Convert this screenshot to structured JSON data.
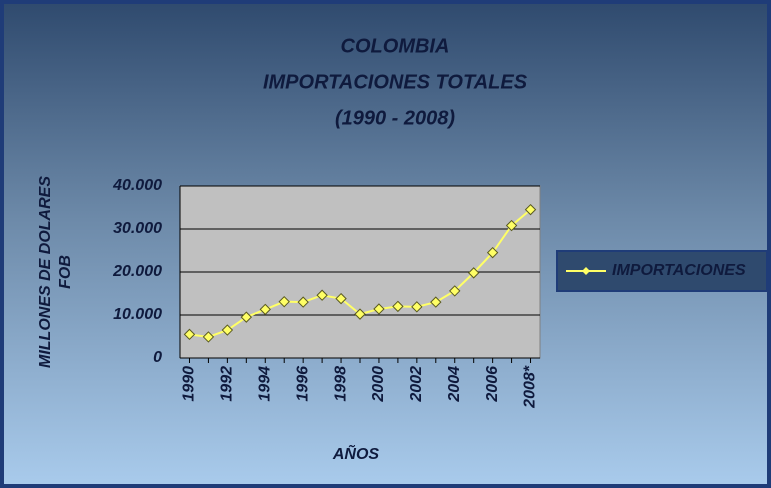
{
  "chart_data": {
    "type": "line",
    "title": [
      "COLOMBIA",
      "IMPORTACIONES TOTALES",
      "(1990 - 2008)"
    ],
    "x_label": "AÑOS",
    "y_label": [
      "MILLONES DE DOLARES",
      "FOB"
    ],
    "categories": [
      "1990",
      null,
      "1992",
      null,
      "1994",
      null,
      "1996",
      null,
      "1998",
      null,
      "2000",
      null,
      "2002",
      null,
      "2004",
      null,
      "2006",
      null,
      "2008*"
    ],
    "series": [
      {
        "name": "IMPORTACIONES",
        "color": "#ffff66",
        "values": [
          5500,
          4900,
          6500,
          9500,
          11300,
          13100,
          13000,
          14600,
          13800,
          10200,
          11400,
          12000,
          11900,
          13000,
          15600,
          19800,
          24500,
          30800,
          34500
        ]
      }
    ],
    "ylim": [
      0,
      40000
    ],
    "yticks": [
      0,
      {
        "value": 10000,
        "label": "10.000"
      },
      {
        "value": 20000,
        "label": "20.000"
      },
      {
        "value": 30000,
        "label": "30.000"
      },
      {
        "value": 40000,
        "label": "40.000"
      }
    ],
    "grid": true,
    "legend": "right"
  }
}
